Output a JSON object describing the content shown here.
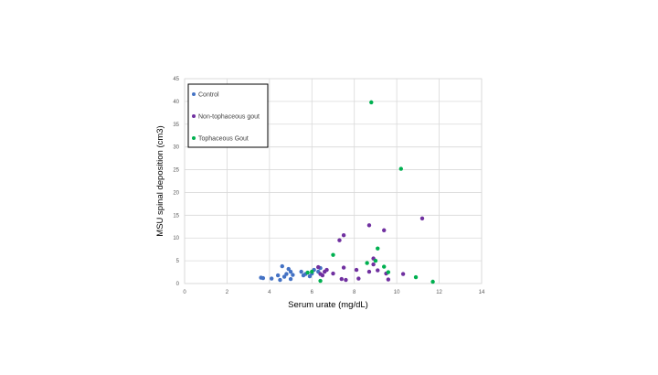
{
  "chart_data": {
    "type": "scatter",
    "title": "",
    "xlabel": "Serum urate (mg/dL)",
    "ylabel": "MSU spinal deposition (cm3)",
    "xlim": [
      0,
      14
    ],
    "ylim": [
      0,
      45
    ],
    "xticks": [
      "0",
      "2",
      "4",
      "6",
      "8",
      "10",
      "12",
      "14"
    ],
    "yticks": [
      "0",
      "5",
      "10",
      "15",
      "20",
      "25",
      "30",
      "35",
      "40",
      "45"
    ],
    "grid": true,
    "legend_position": "top-left",
    "series": [
      {
        "name": "Control",
        "color": "#4472C4",
        "points": [
          [
            3.6,
            1.3
          ],
          [
            3.7,
            1.2
          ],
          [
            4.1,
            1.1
          ],
          [
            4.4,
            1.8
          ],
          [
            4.5,
            0.8
          ],
          [
            4.6,
            3.8
          ],
          [
            4.7,
            1.5
          ],
          [
            4.8,
            2.1
          ],
          [
            4.9,
            3.2
          ],
          [
            5.0,
            2.6
          ],
          [
            5.0,
            1.0
          ],
          [
            5.1,
            1.9
          ],
          [
            5.5,
            2.6
          ],
          [
            5.6,
            1.8
          ],
          [
            5.7,
            2.1
          ],
          [
            5.9,
            1.6
          ],
          [
            6.0,
            2.2
          ],
          [
            6.1,
            3.0
          ],
          [
            6.3,
            2.6
          ],
          [
            6.4,
            3.4
          ]
        ]
      },
      {
        "name": "Non-tophaceous gout",
        "color": "#7030A0",
        "points": [
          [
            6.3,
            3.6
          ],
          [
            6.4,
            2.1
          ],
          [
            6.5,
            1.8
          ],
          [
            6.6,
            2.6
          ],
          [
            6.7,
            3.0
          ],
          [
            7.0,
            2.2
          ],
          [
            7.3,
            9.5
          ],
          [
            7.4,
            1.0
          ],
          [
            7.5,
            10.6
          ],
          [
            7.5,
            3.5
          ],
          [
            7.6,
            0.8
          ],
          [
            8.1,
            3.0
          ],
          [
            8.2,
            1.1
          ],
          [
            8.7,
            12.8
          ],
          [
            8.7,
            2.6
          ],
          [
            8.9,
            4.2
          ],
          [
            8.9,
            5.5
          ],
          [
            9.1,
            2.9
          ],
          [
            9.4,
            11.7
          ],
          [
            9.5,
            2.2
          ],
          [
            9.6,
            0.9
          ],
          [
            10.3,
            2.1
          ],
          [
            11.2,
            14.3
          ]
        ]
      },
      {
        "name": "Tophaceous Gout",
        "color": "#00B050",
        "points": [
          [
            5.8,
            2.4
          ],
          [
            6.0,
            2.6
          ],
          [
            6.4,
            0.6
          ],
          [
            7.0,
            6.3
          ],
          [
            8.6,
            4.5
          ],
          [
            8.8,
            39.8
          ],
          [
            9.0,
            5.0
          ],
          [
            9.1,
            7.7
          ],
          [
            9.4,
            3.7
          ],
          [
            9.6,
            2.5
          ],
          [
            10.2,
            25.2
          ],
          [
            10.9,
            1.4
          ],
          [
            11.7,
            0.4
          ]
        ]
      }
    ]
  }
}
